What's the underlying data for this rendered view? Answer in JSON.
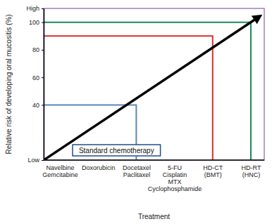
{
  "chart_data": {
    "type": "line",
    "y_label": "Relative risk of developing oral mucositis (%)",
    "x_label": "Treatment",
    "categories": [
      "Navelbine\nGemcitabine",
      "Doxorubicin",
      "Docetaxel\nPaclitaxel",
      "5-FU\nCisplatin\nMTX\nCyclophosphamide",
      "HD-CT\n(BMT)",
      "HD-RT\n(HNC)"
    ],
    "ylim": [
      0,
      110
    ],
    "yticks": [
      {
        "value": 0,
        "label": "Low"
      },
      40,
      60,
      80,
      100,
      {
        "value": 110,
        "label": "High"
      }
    ],
    "grid": false,
    "series": [
      {
        "type": "drop_line",
        "color": "#5b86b4",
        "values": [
          null,
          null,
          40,
          null,
          null,
          null
        ]
      },
      {
        "type": "drop_line",
        "color": "#d9302b",
        "values": [
          null,
          null,
          null,
          null,
          90,
          null
        ]
      },
      {
        "type": "drop_line",
        "color": "#1b8a5a",
        "values": [
          null,
          null,
          null,
          null,
          null,
          100
        ]
      }
    ],
    "annotations": [
      "Standard chemotherapy"
    ]
  }
}
